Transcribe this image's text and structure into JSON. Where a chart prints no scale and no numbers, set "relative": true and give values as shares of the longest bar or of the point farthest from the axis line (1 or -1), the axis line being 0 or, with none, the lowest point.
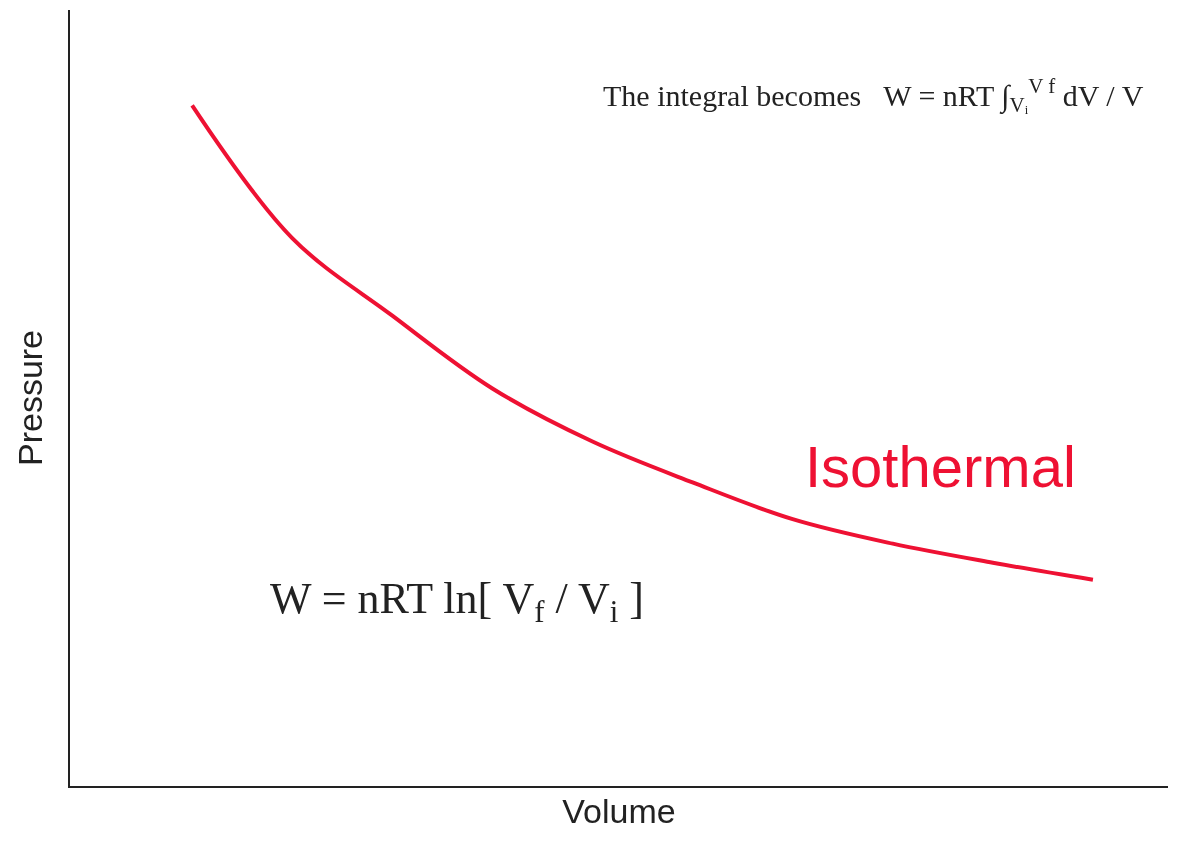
{
  "chart_data": {
    "type": "line",
    "relative": true,
    "xlabel": "Volume",
    "ylabel": "Pressure",
    "categories": [
      null,
      null,
      null,
      null,
      null,
      null,
      null,
      null,
      null,
      null
    ],
    "series": [
      {
        "name": "Isothermal",
        "color": "#ee1133",
        "values": [
          1,
          0.805,
          0.691,
          0.584,
          0.506,
          0.446,
          0.392,
          0.356,
          0.328,
          0.303
        ]
      }
    ],
    "annotations": [
      "The integral becomes   W = nRT ∫$_{Vᵢ}$$^{V f}$ dV / V",
      "W = nRT ln[ V$_{f}$ / V$_{i}$ ]"
    ],
    "legend": false,
    "marker": "none",
    "line_style": "solid"
  }
}
